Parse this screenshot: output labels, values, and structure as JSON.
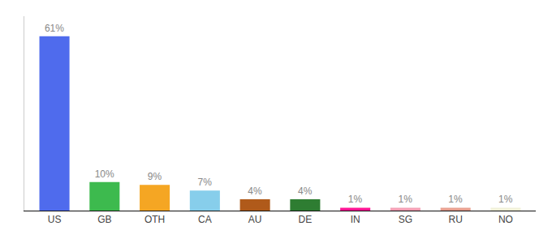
{
  "chart_data": {
    "type": "bar",
    "categories": [
      "US",
      "GB",
      "OTH",
      "CA",
      "AU",
      "DE",
      "IN",
      "SG",
      "RU",
      "NO"
    ],
    "values": [
      61,
      10,
      9,
      7,
      4,
      4,
      1,
      1,
      1,
      1
    ],
    "value_labels": [
      "61%",
      "10%",
      "9%",
      "7%",
      "4%",
      "4%",
      "1%",
      "1%",
      "1%",
      "1%"
    ],
    "colors": [
      "#4f6bed",
      "#3dba4e",
      "#f5a623",
      "#87ceeb",
      "#b05a1a",
      "#2e7d32",
      "#ff1493",
      "#f4a0b5",
      "#e8a090",
      "#f0f0d8"
    ],
    "ylim": [
      0,
      68
    ],
    "data_labels": true,
    "tick_labels": "x",
    "grid": false
  }
}
